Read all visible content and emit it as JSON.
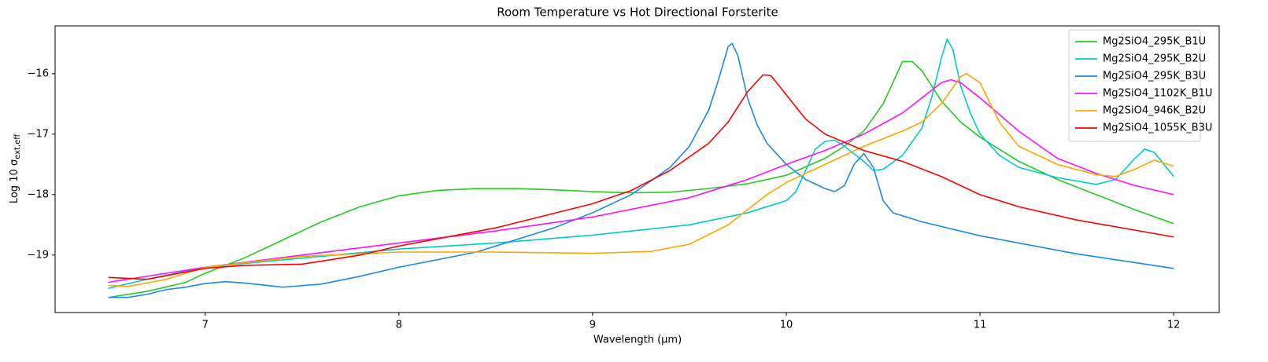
{
  "chart_data": {
    "type": "line",
    "title": "Room Temperature vs Hot Directional Forsterite",
    "xlabel": "Wavelength (µm)",
    "ylabel": "Log 10 σ",
    "ylabel_sub": "ext,eff",
    "xlim": [
      6.225,
      12.235
    ],
    "ylim": [
      -19.95,
      -15.21
    ],
    "xticks": [
      7,
      8,
      9,
      10,
      11,
      12
    ],
    "yticks": [
      {
        "value": -16,
        "label": "−16"
      },
      {
        "value": -17,
        "label": "−17"
      },
      {
        "value": -18,
        "label": "−18"
      },
      {
        "value": -19,
        "label": "−19"
      }
    ],
    "grid": false,
    "legend": "upper right",
    "series": [
      {
        "name": "Mg2SiO4_295K_B1U",
        "color": "#22cc22",
        "x": [
          6.5,
          6.7,
          6.9,
          7.0,
          7.2,
          7.4,
          7.6,
          7.8,
          8.0,
          8.2,
          8.4,
          8.6,
          8.8,
          9.0,
          9.2,
          9.4,
          9.6,
          9.8,
          10.0,
          10.2,
          10.3,
          10.4,
          10.5,
          10.55,
          10.6,
          10.65,
          10.7,
          10.8,
          10.9,
          11.0,
          11.2,
          11.4,
          11.6,
          11.8,
          12.0
        ],
        "values": [
          -19.7,
          -19.6,
          -19.45,
          -19.3,
          -19.05,
          -18.75,
          -18.45,
          -18.2,
          -18.02,
          -17.93,
          -17.9,
          -17.9,
          -17.92,
          -17.95,
          -17.97,
          -17.96,
          -17.9,
          -17.82,
          -17.68,
          -17.4,
          -17.2,
          -16.95,
          -16.5,
          -16.15,
          -15.8,
          -15.8,
          -15.95,
          -16.45,
          -16.8,
          -17.05,
          -17.45,
          -17.75,
          -18.0,
          -18.25,
          -18.48
        ]
      },
      {
        "name": "Mg2SiO4_295K_B2U",
        "color": "#00cccc",
        "x": [
          6.5,
          6.7,
          7.0,
          7.5,
          8.0,
          8.5,
          9.0,
          9.5,
          9.8,
          10.0,
          10.05,
          10.1,
          10.15,
          10.2,
          10.25,
          10.3,
          10.4,
          10.45,
          10.5,
          10.6,
          10.7,
          10.75,
          10.8,
          10.83,
          10.86,
          10.9,
          10.95,
          11.0,
          11.1,
          11.2,
          11.4,
          11.6,
          11.7,
          11.8,
          11.85,
          11.9,
          12.0
        ],
        "values": [
          -19.55,
          -19.4,
          -19.2,
          -19.05,
          -18.9,
          -18.8,
          -18.67,
          -18.5,
          -18.3,
          -18.1,
          -17.95,
          -17.6,
          -17.25,
          -17.12,
          -17.1,
          -17.2,
          -17.45,
          -17.6,
          -17.58,
          -17.35,
          -16.9,
          -16.4,
          -15.75,
          -15.43,
          -15.6,
          -16.2,
          -16.65,
          -17.0,
          -17.35,
          -17.55,
          -17.72,
          -17.83,
          -17.75,
          -17.4,
          -17.25,
          -17.3,
          -17.7
        ]
      },
      {
        "name": "Mg2SiO4_295K_B3U",
        "color": "#1e88e5",
        "x": [
          6.5,
          6.6,
          6.7,
          6.8,
          6.9,
          7.0,
          7.1,
          7.2,
          7.4,
          7.6,
          7.8,
          8.0,
          8.4,
          8.8,
          9.0,
          9.2,
          9.4,
          9.5,
          9.6,
          9.65,
          9.7,
          9.72,
          9.75,
          9.8,
          9.85,
          9.9,
          10.0,
          10.1,
          10.2,
          10.25,
          10.3,
          10.35,
          10.4,
          10.45,
          10.5,
          10.55,
          10.7,
          11.0,
          11.5,
          12.0
        ],
        "values": [
          -19.7,
          -19.7,
          -19.65,
          -19.57,
          -19.53,
          -19.47,
          -19.44,
          -19.46,
          -19.53,
          -19.48,
          -19.35,
          -19.2,
          -18.95,
          -18.55,
          -18.3,
          -18.0,
          -17.55,
          -17.2,
          -16.6,
          -16.1,
          -15.55,
          -15.5,
          -15.7,
          -16.4,
          -16.85,
          -17.15,
          -17.5,
          -17.75,
          -17.9,
          -17.95,
          -17.85,
          -17.5,
          -17.32,
          -17.55,
          -18.1,
          -18.3,
          -18.45,
          -18.68,
          -18.98,
          -19.22
        ]
      },
      {
        "name": "Mg2SiO4_1102K_B1U",
        "color": "#ff11ff",
        "x": [
          6.5,
          7.0,
          7.5,
          8.0,
          8.5,
          9.0,
          9.5,
          9.8,
          10.0,
          10.2,
          10.4,
          10.6,
          10.7,
          10.8,
          10.85,
          10.9,
          11.0,
          11.2,
          11.4,
          11.6,
          11.8,
          12.0
        ],
        "values": [
          -19.45,
          -19.2,
          -19.0,
          -18.8,
          -18.6,
          -18.37,
          -18.05,
          -17.75,
          -17.5,
          -17.27,
          -17.0,
          -16.65,
          -16.4,
          -16.15,
          -16.1,
          -16.15,
          -16.4,
          -16.95,
          -17.4,
          -17.65,
          -17.85,
          -18.0
        ]
      },
      {
        "name": "Mg2SiO4_946K_B2U",
        "color": "#ffa500",
        "x": [
          6.5,
          6.6,
          6.8,
          7.0,
          7.5,
          8.0,
          8.5,
          9.0,
          9.3,
          9.5,
          9.7,
          9.9,
          10.0,
          10.2,
          10.4,
          10.6,
          10.7,
          10.8,
          10.9,
          10.93,
          11.0,
          11.1,
          11.2,
          11.4,
          11.6,
          11.7,
          11.8,
          11.9,
          12.0
        ],
        "values": [
          -19.5,
          -19.52,
          -19.4,
          -19.2,
          -19.02,
          -18.95,
          -18.95,
          -18.97,
          -18.94,
          -18.82,
          -18.5,
          -18.0,
          -17.8,
          -17.5,
          -17.2,
          -16.95,
          -16.8,
          -16.5,
          -16.05,
          -16.0,
          -16.15,
          -16.8,
          -17.2,
          -17.5,
          -17.67,
          -17.7,
          -17.58,
          -17.43,
          -17.53
        ]
      },
      {
        "name": "Mg2SiO4_1055K_B3U",
        "color": "#ff0000",
        "x": [
          6.5,
          6.7,
          7.0,
          7.2,
          7.5,
          7.8,
          8.0,
          8.5,
          9.0,
          9.2,
          9.4,
          9.6,
          9.7,
          9.8,
          9.88,
          9.92,
          10.0,
          10.1,
          10.2,
          10.4,
          10.6,
          10.8,
          11.0,
          11.2,
          11.5,
          12.0
        ],
        "values": [
          -19.37,
          -19.4,
          -19.22,
          -19.17,
          -19.15,
          -19.0,
          -18.85,
          -18.55,
          -18.15,
          -17.93,
          -17.6,
          -17.15,
          -16.8,
          -16.3,
          -16.02,
          -16.03,
          -16.35,
          -16.75,
          -17.0,
          -17.27,
          -17.45,
          -17.7,
          -18.0,
          -18.2,
          -18.42,
          -18.7
        ]
      }
    ]
  }
}
